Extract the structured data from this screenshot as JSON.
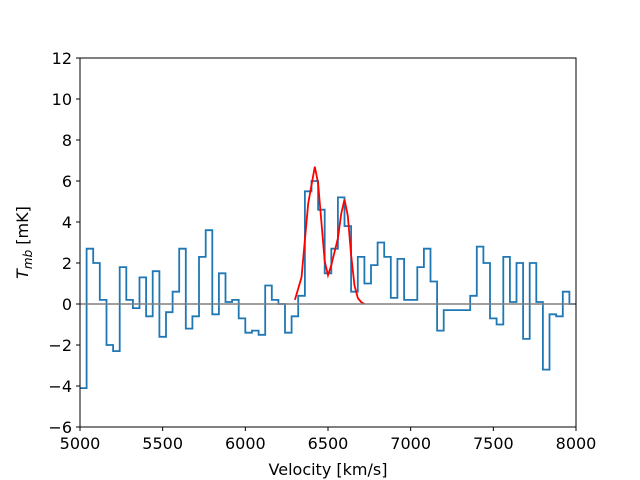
{
  "chart_data": {
    "type": "line",
    "xlabel": "Velocity [km/s]",
    "ylabel_main": "T",
    "ylabel_sub": "mb",
    "ylabel_unit": " [mK]",
    "xlim": [
      5000,
      8000
    ],
    "ylim": [
      -6,
      12
    ],
    "xticks": [
      5000,
      5500,
      6000,
      6500,
      7000,
      7500,
      8000
    ],
    "yticks": [
      -6,
      -4,
      -2,
      0,
      2,
      4,
      6,
      8,
      10,
      12
    ],
    "grid": false,
    "series": [
      {
        "style": "steps",
        "color": "#1f77b4",
        "x": [
          5000,
          5040,
          5080,
          5120,
          5160,
          5200,
          5240,
          5280,
          5320,
          5360,
          5400,
          5440,
          5480,
          5520,
          5560,
          5600,
          5640,
          5680,
          5720,
          5760,
          5800,
          5840,
          5880,
          5920,
          5960,
          6000,
          6040,
          6080,
          6120,
          6160,
          6200,
          6240,
          6280,
          6320,
          6360,
          6400,
          6440,
          6480,
          6520,
          6560,
          6600,
          6640,
          6680,
          6720,
          6760,
          6800,
          6840,
          6880,
          6920,
          6960,
          7000,
          7040,
          7080,
          7120,
          7160,
          7200,
          7240,
          7280,
          7320,
          7360,
          7400,
          7440,
          7480,
          7520,
          7560,
          7600,
          7640,
          7680,
          7720,
          7760,
          7800,
          7840,
          7880,
          7920,
          7960
        ],
        "y": [
          -4.1,
          2.7,
          2.0,
          0.2,
          -2.0,
          -2.3,
          1.8,
          0.2,
          -0.2,
          1.3,
          -0.6,
          1.6,
          -1.6,
          -0.4,
          0.6,
          2.7,
          -1.2,
          -0.6,
          2.3,
          3.6,
          -0.5,
          1.5,
          0.1,
          0.2,
          -0.7,
          -1.4,
          -1.3,
          -1.5,
          0.9,
          0.2,
          0.0,
          -1.4,
          -0.6,
          0.4,
          5.5,
          6.0,
          4.6,
          1.5,
          2.7,
          5.2,
          3.8,
          0.6,
          2.3,
          1.0,
          1.9,
          3.0,
          2.3,
          0.3,
          2.2,
          0.2,
          0.2,
          1.8,
          2.7,
          1.1,
          -1.3,
          -0.3,
          -0.3,
          -0.3,
          -0.3,
          0.4,
          2.8,
          2.0,
          -0.7,
          -1.0,
          2.3,
          0.1,
          2.0,
          -1.7,
          2.0,
          0.1,
          -3.2,
          -0.5,
          -0.6,
          0.6,
          0.0
        ]
      },
      {
        "style": "line",
        "color": "#ff0000",
        "x": [
          6300,
          6340,
          6380,
          6420,
          6440,
          6460,
          6480,
          6500,
          6520,
          6560,
          6580,
          6600,
          6620,
          6640,
          6660,
          6680,
          6700,
          6720
        ],
        "y": [
          0.2,
          1.3,
          4.9,
          6.7,
          5.9,
          4.0,
          2.1,
          1.4,
          1.9,
          3.2,
          4.4,
          5.1,
          4.3,
          2.4,
          0.9,
          0.3,
          0.1,
          0.0
        ]
      },
      {
        "style": "hline",
        "color": "#808080",
        "y": 0
      }
    ]
  }
}
